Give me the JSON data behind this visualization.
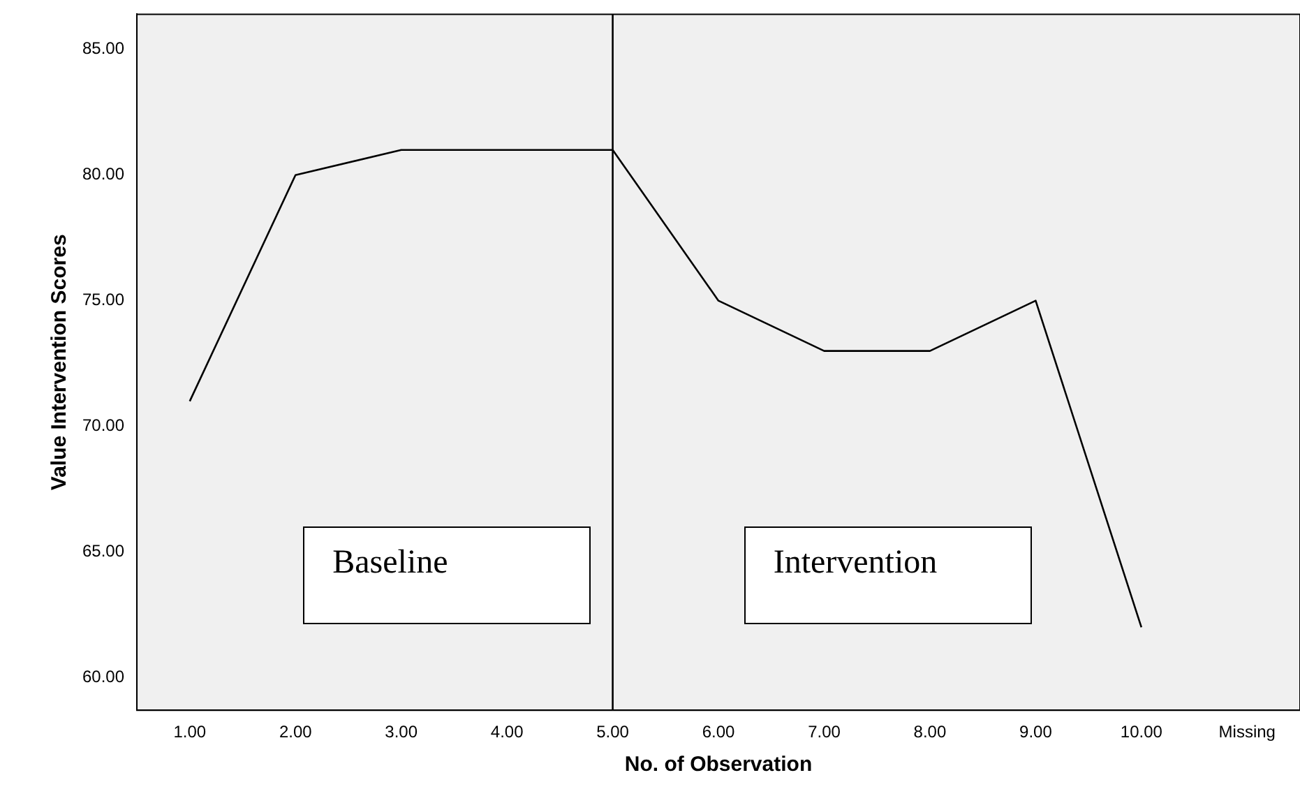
{
  "chart_data": {
    "type": "line",
    "xlabel": "No. of Observation",
    "ylabel": "Value Intervention Scores",
    "categories": [
      "1.00",
      "2.00",
      "3.00",
      "4.00",
      "5.00",
      "6.00",
      "7.00",
      "8.00",
      "9.00",
      "10.00",
      "Missing"
    ],
    "series": [
      {
        "color": "#000000",
        "values": [
          71,
          80,
          81,
          81,
          81,
          75,
          73,
          73,
          75,
          62,
          null
        ]
      }
    ],
    "ylim": [
      58.7,
      86.4
    ],
    "yticks": [
      {
        "value": 60,
        "label": "60.00"
      },
      {
        "value": 65,
        "label": "65.00"
      },
      {
        "value": 70,
        "label": "70.00"
      },
      {
        "value": 75,
        "label": "75.00"
      },
      {
        "value": 80,
        "label": "80.00"
      },
      {
        "value": 85,
        "label": "85.00"
      }
    ],
    "ref_lines": [
      {
        "axis": "x",
        "value": "5.00",
        "color": "#000000"
      }
    ],
    "annotations": [
      "Baseline",
      "Intervention"
    ],
    "grid": false,
    "legend": false,
    "marker": "none",
    "line_style": "solid"
  }
}
